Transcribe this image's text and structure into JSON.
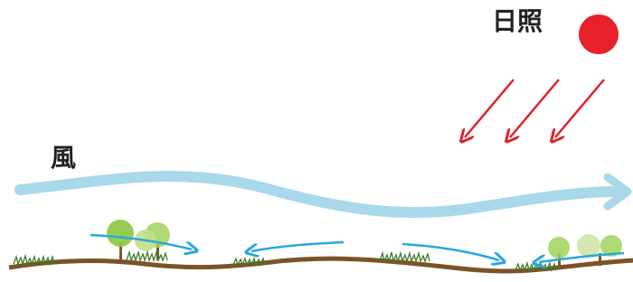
{
  "labels": {
    "sunshine": "日照",
    "wind": "風"
  }
}
